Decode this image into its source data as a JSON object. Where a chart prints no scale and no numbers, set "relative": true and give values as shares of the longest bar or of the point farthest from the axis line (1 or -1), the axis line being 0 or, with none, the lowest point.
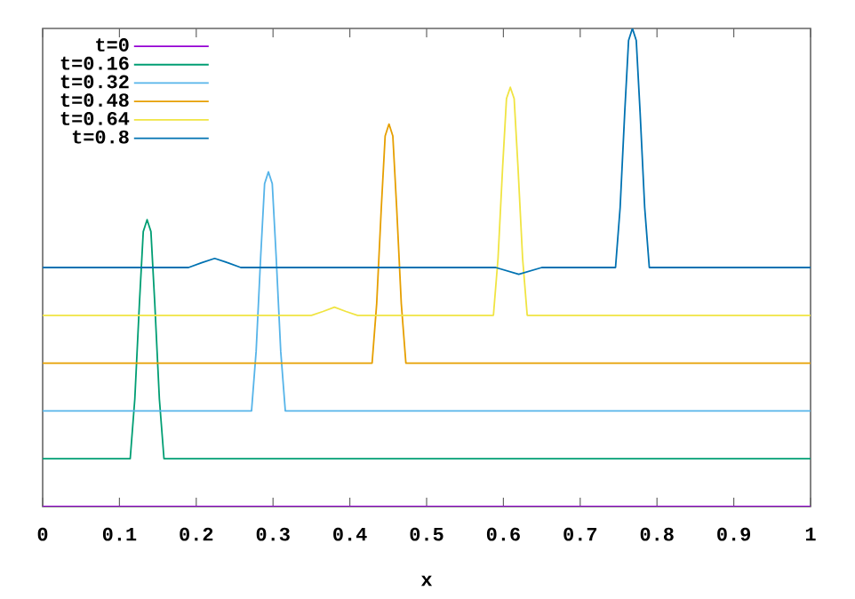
{
  "chart_data": {
    "type": "line",
    "relative": true,
    "xlabel": "x",
    "xlim": [
      0,
      1
    ],
    "xticks": [
      0,
      0.1,
      0.2,
      0.3,
      0.4,
      0.5,
      0.6,
      0.7,
      0.8,
      0.9,
      1
    ],
    "tick_labels": "x",
    "legend": "top left",
    "marker": "none",
    "line_style": "solid",
    "series": [
      {
        "name": "t=0",
        "color": "#9400d3",
        "x": [
          0,
          1
        ],
        "values": [
          0,
          0
        ]
      },
      {
        "name": "t=0.16",
        "color": "#009e73",
        "x": [
          0,
          0.114,
          0.12,
          0.126,
          0.131,
          0.136,
          0.141,
          0.146,
          0.152,
          0.158,
          1
        ],
        "values": [
          0.1,
          0.1,
          0.225,
          0.425,
          0.575,
          0.6,
          0.575,
          0.425,
          0.225,
          0.1,
          0.1
        ]
      },
      {
        "name": "t=0.32",
        "color": "#56b4e9",
        "x": [
          0,
          0.272,
          0.278,
          0.284,
          0.289,
          0.294,
          0.299,
          0.304,
          0.31,
          0.316,
          1
        ],
        "values": [
          0.2,
          0.2,
          0.325,
          0.525,
          0.675,
          0.7,
          0.675,
          0.525,
          0.325,
          0.2,
          0.2
        ]
      },
      {
        "name": "t=0.48",
        "color": "#e69f00",
        "x": [
          0,
          0.429,
          0.435,
          0.441,
          0.446,
          0.451,
          0.456,
          0.461,
          0.467,
          0.473,
          1
        ],
        "values": [
          0.3,
          0.3,
          0.425,
          0.625,
          0.775,
          0.8,
          0.775,
          0.625,
          0.425,
          0.3,
          0.3
        ]
      },
      {
        "name": "t=0.64",
        "color": "#f0e442",
        "x": [
          0,
          0.35,
          0.365,
          0.38,
          0.395,
          0.41,
          0.587,
          0.593,
          0.599,
          0.604,
          0.609,
          0.614,
          0.619,
          0.625,
          0.631,
          1
        ],
        "values": [
          0.4,
          0.4,
          0.408,
          0.417,
          0.408,
          0.4,
          0.4,
          0.519,
          0.71,
          0.853,
          0.877,
          0.853,
          0.71,
          0.519,
          0.4,
          0.4
        ]
      },
      {
        "name": "t=0.8",
        "color": "#0072b2",
        "x": [
          0,
          0.19,
          0.207,
          0.224,
          0.241,
          0.258,
          0.59,
          0.605,
          0.62,
          0.635,
          0.65,
          0.746,
          0.752,
          0.758,
          0.763,
          0.768,
          0.773,
          0.778,
          0.784,
          0.79,
          1
        ],
        "values": [
          0.5,
          0.5,
          0.51,
          0.519,
          0.51,
          0.5,
          0.5,
          0.493,
          0.486,
          0.493,
          0.5,
          0.5,
          0.625,
          0.825,
          0.975,
          1,
          0.975,
          0.825,
          0.625,
          0.5,
          0.5
        ]
      }
    ]
  }
}
